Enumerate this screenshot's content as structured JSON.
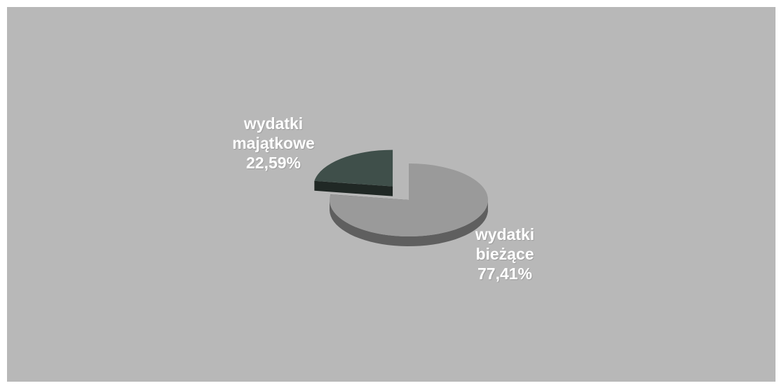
{
  "chart_data": {
    "type": "pie",
    "title": "",
    "slices": [
      {
        "label_lines": [
          "wydatki",
          "majątkowe"
        ],
        "percent_label": "22,59%",
        "value": 22.59,
        "color": "#3f4f4a",
        "exploded": true
      },
      {
        "label_lines": [
          "wydatki",
          "bieżące"
        ],
        "percent_label": "77,41%",
        "value": 77.41,
        "color": "#9a9a9a",
        "exploded": false
      }
    ],
    "background_color": "#b8b8b8",
    "legend": "none",
    "style": "3d-exploded"
  }
}
